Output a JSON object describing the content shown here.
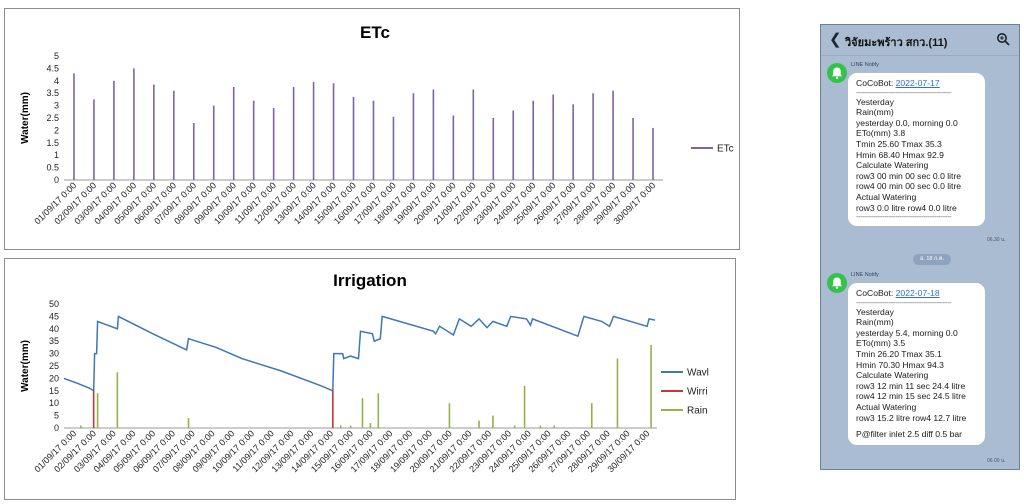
{
  "chart_data": [
    {
      "type": "bar",
      "title": "ETc",
      "ylabel": "Water(mm)",
      "xlabel": "",
      "ylim": [
        0,
        5
      ],
      "yticks": [
        0,
        0.5,
        1,
        1.5,
        2,
        2.5,
        3,
        3.5,
        4,
        4.5,
        5
      ],
      "legend": "right",
      "grid": false,
      "categories": [
        "01/09/17 0:00",
        "02/09/17 0:00",
        "03/09/17 0:00",
        "04/09/17 0:00",
        "05/09/17 0:00",
        "06/09/17 0:00",
        "07/09/17 0:00",
        "08/09/17 0:00",
        "09/09/17 0:00",
        "10/09/17 0:00",
        "11/09/17 0:00",
        "12/09/17 0:00",
        "13/09/17 0:00",
        "14/09/17 0:00",
        "15/09/17 0:00",
        "16/09/17 0:00",
        "17/09/17 0:00",
        "18/09/17 0:00",
        "19/09/17 0:00",
        "20/09/17 0:00",
        "21/09/17 0:00",
        "22/09/17 0:00",
        "23/09/17 0:00",
        "24/09/17 0:00",
        "25/09/17 0:00",
        "26/09/17 0:00",
        "27/09/17 0:00",
        "28/09/17 0:00",
        "29/09/17 0:00",
        "30/09/17 0:00"
      ],
      "series": [
        {
          "name": "ETc",
          "color": "#7f63a4",
          "values": [
            4.3,
            3.25,
            4.0,
            4.5,
            3.85,
            3.6,
            2.3,
            3.0,
            3.75,
            3.2,
            2.9,
            3.75,
            3.95,
            3.9,
            3.35,
            3.2,
            2.55,
            3.5,
            3.65,
            2.6,
            3.65,
            2.5,
            2.8,
            3.2,
            3.45,
            3.05,
            3.5,
            3.6,
            2.5,
            2.1
          ]
        }
      ]
    },
    {
      "type": "line",
      "title": "Irrigation",
      "ylabel": "Water(mm)",
      "xlabel": "",
      "ylim": [
        0,
        50
      ],
      "yticks": [
        0,
        5,
        10,
        15,
        20,
        25,
        30,
        35,
        40,
        45,
        50
      ],
      "legend": "right",
      "grid": false,
      "categories": [
        "01/09/17 0:00",
        "02/09/17 0:00",
        "03/09/17 0:00",
        "04/09/17 0:00",
        "05/09/17 0:00",
        "06/09/17 0:00",
        "07/09/17 0:00",
        "08/09/17 0:00",
        "09/09/17 0:00",
        "10/09/17 0:00",
        "11/09/17 0:00",
        "12/09/17 0:00",
        "13/09/17 0:00",
        "14/09/17 0:00",
        "15/09/17 0:00",
        "16/09/17 0:00",
        "17/09/17 0:00",
        "18/09/17 0:00",
        "19/09/17 0:00",
        "20/09/17 0:00",
        "21/09/17 0:00",
        "22/09/17 0:00",
        "23/09/17 0:00",
        "24/09/17 0:00",
        "25/09/17 0:00",
        "26/09/17 0:00",
        "27/09/17 0:00",
        "28/09/17 0:00",
        "29/09/17 0:00",
        "30/09/17 0:00"
      ],
      "series": [
        {
          "name": "Wavl",
          "color": "#3f76b4",
          "kind": "line",
          "points": [
            [
              0,
              20
            ],
            [
              0.7,
              18
            ],
            [
              1.3,
              16
            ],
            [
              1.5,
              15
            ],
            [
              1.55,
              30
            ],
            [
              1.65,
              30
            ],
            [
              1.7,
              43
            ],
            [
              2.7,
              40
            ],
            [
              2.75,
              45
            ],
            [
              4.5,
              38
            ],
            [
              6.2,
              31.5
            ],
            [
              6.3,
              36
            ],
            [
              7.7,
              32.5
            ],
            [
              9,
              28
            ],
            [
              11,
              23
            ],
            [
              13,
              17
            ],
            [
              13.6,
              15
            ],
            [
              13.65,
              30
            ],
            [
              14.1,
              30
            ],
            [
              14.15,
              28
            ],
            [
              14.5,
              29
            ],
            [
              14.9,
              28
            ],
            [
              15.0,
              39
            ],
            [
              15.6,
              38
            ],
            [
              15.7,
              35
            ],
            [
              16.0,
              36
            ],
            [
              16.1,
              45
            ],
            [
              18.7,
              39
            ],
            [
              18.8,
              38
            ],
            [
              19.0,
              41
            ],
            [
              19.7,
              37.5
            ],
            [
              20.0,
              44
            ],
            [
              20.6,
              41
            ],
            [
              21.0,
              44
            ],
            [
              21.4,
              40.5
            ],
            [
              21.7,
              43
            ],
            [
              22.4,
              41
            ],
            [
              22.6,
              45
            ],
            [
              23.4,
              44
            ],
            [
              23.6,
              41.5
            ],
            [
              23.7,
              44
            ],
            [
              26.0,
              37
            ],
            [
              26.3,
              45
            ],
            [
              27.2,
              43
            ],
            [
              27.6,
              41
            ],
            [
              27.8,
              45
            ],
            [
              29.5,
              41
            ],
            [
              29.6,
              44
            ],
            [
              29.9,
              43.5
            ]
          ]
        },
        {
          "name": "Wirri",
          "color": "#bf3a36",
          "kind": "bar",
          "bars": [
            [
              1.5,
              15
            ],
            [
              13.6,
              15
            ]
          ]
        },
        {
          "name": "Rain",
          "color": "#90b447",
          "kind": "bar",
          "bars": [
            [
              0.85,
              1
            ],
            [
              1.7,
              14
            ],
            [
              2.7,
              22.5
            ],
            [
              6.3,
              4
            ],
            [
              14.0,
              1
            ],
            [
              14.5,
              1
            ],
            [
              15.1,
              12
            ],
            [
              15.5,
              2
            ],
            [
              15.9,
              14
            ],
            [
              19.5,
              10
            ],
            [
              21.0,
              3
            ],
            [
              21.7,
              5
            ],
            [
              22.8,
              1
            ],
            [
              23.3,
              17
            ],
            [
              24.1,
              1
            ],
            [
              24.8,
              1
            ],
            [
              26.7,
              10
            ],
            [
              28.0,
              28
            ],
            [
              29.7,
              33.5
            ]
          ]
        }
      ]
    }
  ],
  "phone": {
    "header": {
      "back_icon": "chevron-left-icon",
      "title": "วิจัยมะพร้าว สกว.(11)",
      "search_icon": "search-icon"
    },
    "date_divider": "อ. 18 ก.ค.",
    "messages": [
      {
        "sender": "LINE Notify",
        "avatar_color": "#34c24a",
        "prefix": "CoCoBot: ",
        "date": "2022-07-17",
        "separator": "--------------------------------------------",
        "lines": [
          "Yesterday",
          "Rain(mm)",
          "yesterday 0.0, morning 0.0",
          "ETo(mm) 3.8",
          "Tmin 25.60 Tmax 35.3",
          "Hmin 68.40 Hmax 92.9",
          "Calculate Watering",
          "row3 00 min 00 sec  0.0 litre",
          "row4 00 min 00 sec  0.0 litre",
          "Actual Watering",
          "row3 0.0 litre row4 0.0 litre"
        ],
        "end_separator": "--------------------------------------------",
        "time": "06.30 น."
      },
      {
        "sender": "LINE Notify",
        "avatar_color": "#34c24a",
        "prefix": "CoCoBot: ",
        "date": "2022-07-18",
        "separator": "--------------------------------------------",
        "lines": [
          "Yesterday",
          "Rain(mm)",
          "yesterday 5.4, morning 0.0",
          "ETo(mm) 3.5",
          "Tmin 26.20 Tmax 35.1",
          "Hmin 70.30 Hmax 94.3",
          "Calculate Watering",
          "row3 12 min 11 sec  24.4 litre",
          "row4 12 min 15 sec  24.5 litre",
          "Actual Watering",
          "row3 15.2 litre row4 12.7 litre",
          "",
          "P@filter inlet 2.5 diff 0.5 bar"
        ],
        "end_separator": "",
        "time": "06.00 น."
      }
    ]
  }
}
